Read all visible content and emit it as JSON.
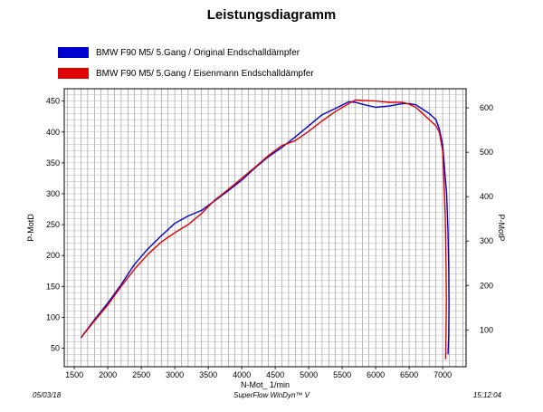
{
  "title": "Leistungsdiagramm",
  "legend": [
    {
      "label": "BMW F90 M5/ 5.Gang / Original Endschalldämpfer",
      "color": "#0000cc"
    },
    {
      "label": "BMW F90 M5/ 5.Gang / Eisenmann Endschalldämpfer",
      "color": "#e00000"
    }
  ],
  "footer": {
    "date": "05/03/18",
    "software": "SuperFlow WinDyn™ V",
    "time": "15:12:04"
  },
  "chart_data": {
    "type": "line",
    "xlabel": "N-Mot_ 1/min",
    "ylabel_left": "P-MotD",
    "ylabel_right": "P-MotP",
    "xlim": [
      1350,
      7350
    ],
    "ylim_left": [
      20,
      470
    ],
    "ylim_right": [
      17,
      643
    ],
    "x_ticks": [
      1500,
      2000,
      2500,
      3000,
      3500,
      4000,
      4500,
      5000,
      5500,
      6000,
      6500,
      7000
    ],
    "y_ticks_left": [
      50,
      100,
      150,
      200,
      250,
      300,
      350,
      400,
      450
    ],
    "y_ticks_right": [
      100,
      200,
      300,
      400,
      500,
      600
    ],
    "grid": true,
    "series": [
      {
        "name": "BMW F90 M5/ 5.Gang / Original Endschalldämpfer",
        "color": "#0000cc",
        "x": [
          1600,
          1800,
          2000,
          2200,
          2400,
          2600,
          2800,
          3000,
          3200,
          3400,
          3600,
          3800,
          4000,
          4200,
          4400,
          4600,
          4800,
          5000,
          5200,
          5400,
          5600,
          5700,
          5800,
          6000,
          6200,
          6400,
          6500,
          6600,
          6700,
          6800,
          6900,
          6950,
          7000,
          7030,
          7060,
          7080,
          7090,
          7095,
          7090,
          7080
        ],
        "y": [
          67,
          96,
          123,
          153,
          186,
          211,
          232,
          252,
          264,
          273,
          289,
          305,
          322,
          342,
          360,
          375,
          392,
          410,
          428,
          438,
          449,
          448,
          445,
          440,
          442,
          446,
          446,
          444,
          437,
          430,
          420,
          405,
          380,
          340,
          300,
          240,
          180,
          120,
          70,
          40
        ]
      },
      {
        "name": "BMW F90 M5/ 5.Gang / Eisenmann Endschalldämpfer",
        "color": "#e00000",
        "x": [
          1600,
          1800,
          2000,
          2200,
          2400,
          2600,
          2800,
          3000,
          3200,
          3400,
          3600,
          3800,
          4000,
          4200,
          4400,
          4600,
          4800,
          5000,
          5200,
          5400,
          5600,
          5700,
          5800,
          6000,
          6200,
          6400,
          6500,
          6600,
          6700,
          6800,
          6900,
          6950,
          7000,
          7020,
          7040,
          7050,
          7055,
          7050,
          7045
        ],
        "y": [
          67,
          94,
          120,
          150,
          178,
          202,
          222,
          237,
          250,
          268,
          290,
          307,
          325,
          343,
          362,
          378,
          386,
          401,
          418,
          433,
          446,
          452,
          451,
          450,
          448,
          448,
          445,
          440,
          430,
          420,
          410,
          400,
          370,
          320,
          260,
          190,
          130,
          70,
          32
        ]
      }
    ]
  }
}
